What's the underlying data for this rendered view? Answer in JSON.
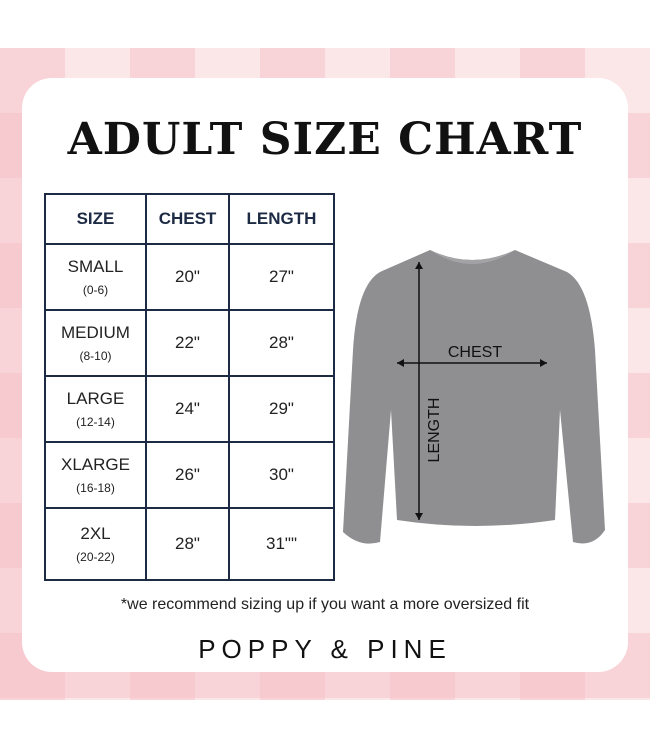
{
  "title": "ADULT SIZE CHART",
  "table": {
    "headers": [
      "SIZE",
      "CHEST",
      "LENGTH"
    ],
    "rows": [
      {
        "size": "SMALL",
        "range": "(0-6)",
        "chest": "20\"",
        "length": "27\""
      },
      {
        "size": "MEDIUM",
        "range": "(8-10)",
        "chest": "22\"",
        "length": "28\""
      },
      {
        "size": "LARGE",
        "range": "(12-14)",
        "chest": "24\"",
        "length": "29\""
      },
      {
        "size": "XLARGE",
        "range": "(16-18)",
        "chest": "26\"",
        "length": "30\""
      },
      {
        "size": "2XL",
        "range": "(20-22)",
        "chest": "28\"",
        "length": "31\"\""
      }
    ]
  },
  "diagram": {
    "chest_label": "CHEST",
    "length_label": "LENGTH",
    "shirt_color": "#8f8f92"
  },
  "note": "*we recommend sizing up if you want a more oversized fit",
  "brand": "POPPY & PINE"
}
